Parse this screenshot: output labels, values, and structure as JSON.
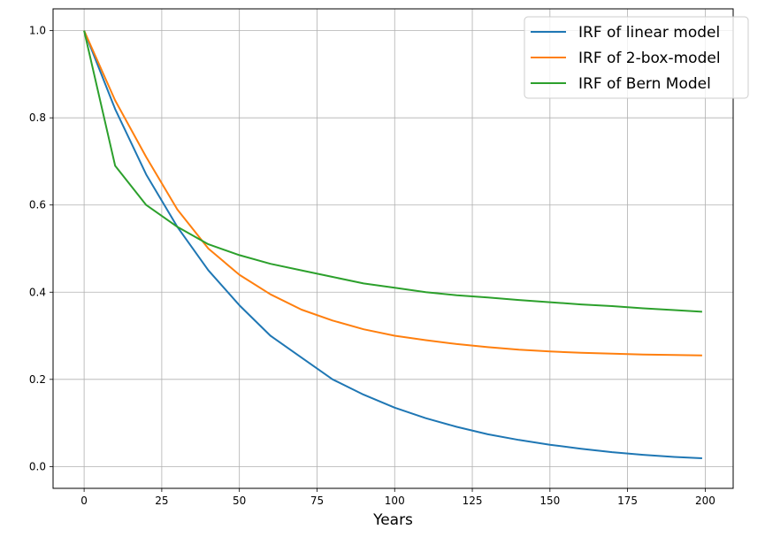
{
  "chart_data": {
    "type": "line",
    "title": "",
    "xlabel": "Years",
    "ylabel": "",
    "xlim": [
      -10,
      209
    ],
    "ylim": [
      -0.05,
      1.05
    ],
    "x_ticks": [
      0,
      25,
      50,
      75,
      100,
      125,
      150,
      175,
      200
    ],
    "x_tick_labels": [
      "0",
      "25",
      "50",
      "75",
      "100",
      "125",
      "150",
      "175",
      "200"
    ],
    "y_ticks": [
      0.0,
      0.2,
      0.4,
      0.6,
      0.8,
      1.0
    ],
    "y_tick_labels": [
      "0.0",
      "0.2",
      "0.4",
      "0.6",
      "0.8",
      "1.0"
    ],
    "grid": true,
    "legend_position": "top-right",
    "x": [
      0,
      10,
      20,
      30,
      40,
      50,
      60,
      70,
      80,
      90,
      100,
      110,
      120,
      130,
      140,
      150,
      160,
      170,
      180,
      190,
      199
    ],
    "series": [
      {
        "name": "IRF of linear model",
        "color": "#1f77b4",
        "values": [
          1.0,
          0.82,
          0.67,
          0.55,
          0.45,
          0.37,
          0.3,
          0.25,
          0.2,
          0.165,
          0.135,
          0.111,
          0.091,
          0.074,
          0.061,
          0.05,
          0.041,
          0.033,
          0.027,
          0.022,
          0.019
        ]
      },
      {
        "name": "IRF of 2-box-model",
        "color": "#ff7f0e",
        "values": [
          1.0,
          0.84,
          0.71,
          0.59,
          0.5,
          0.44,
          0.395,
          0.36,
          0.335,
          0.315,
          0.3,
          0.29,
          0.281,
          0.274,
          0.268,
          0.264,
          0.261,
          0.259,
          0.257,
          0.256,
          0.255
        ]
      },
      {
        "name": "IRF of Bern Model",
        "color": "#2ca02c",
        "values": [
          1.0,
          0.69,
          0.6,
          0.55,
          0.51,
          0.485,
          0.465,
          0.45,
          0.435,
          0.42,
          0.41,
          0.4,
          0.393,
          0.388,
          0.382,
          0.377,
          0.372,
          0.368,
          0.363,
          0.359,
          0.355
        ]
      }
    ]
  }
}
